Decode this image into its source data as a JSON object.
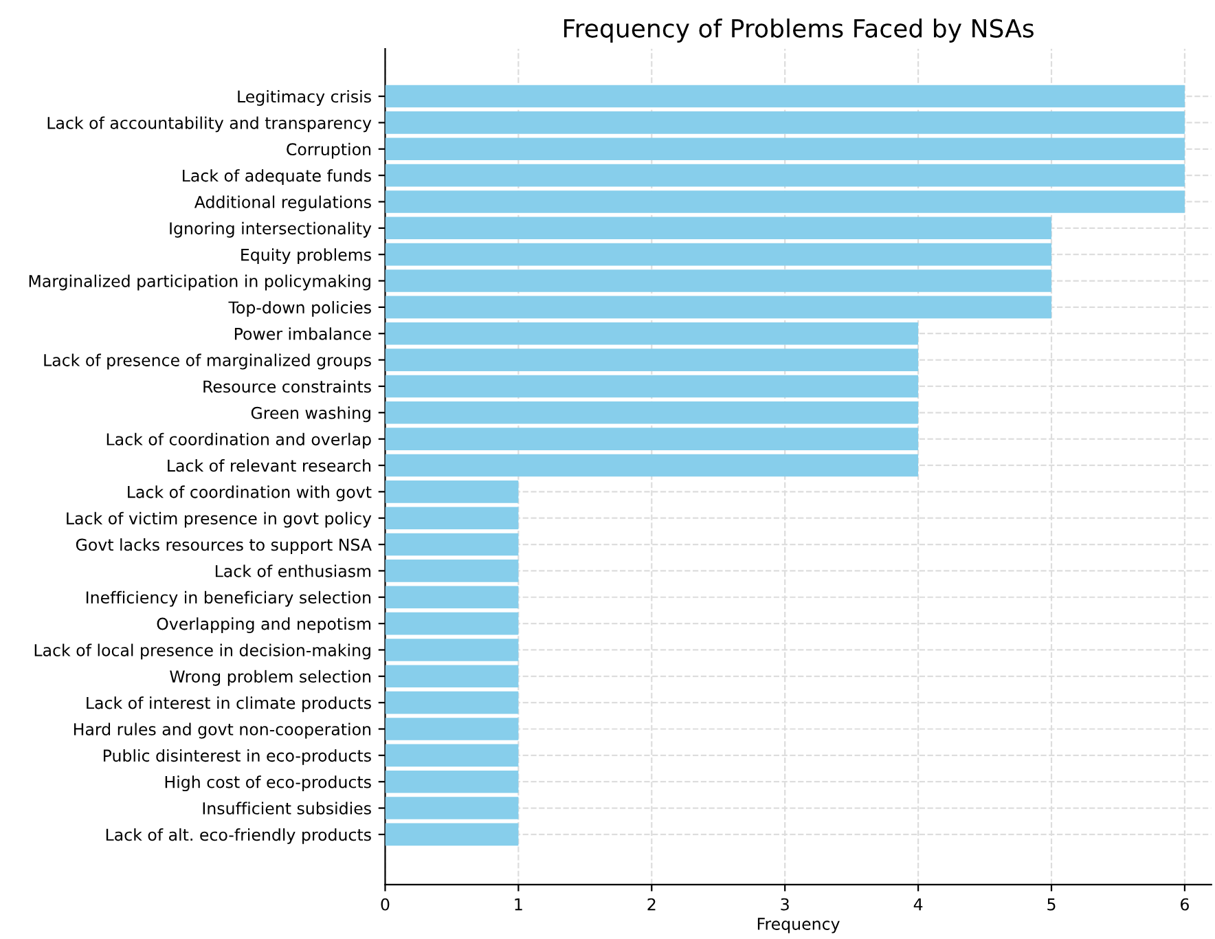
{
  "chart_data": {
    "type": "bar",
    "orientation": "horizontal",
    "title": "Frequency of Problems Faced by NSAs",
    "xlabel": "Frequency",
    "categories": [
      "Legitimacy crisis",
      "Lack of accountability and transparency",
      "Corruption",
      "Lack of adequate funds",
      "Additional regulations",
      "Ignoring intersectionality",
      "Equity problems",
      "Marginalized participation in policymaking",
      "Top-down policies",
      "Power imbalance",
      "Lack of presence of marginalized groups",
      "Resource constraints",
      "Green washing",
      "Lack of coordination and overlap",
      "Lack of relevant research",
      "Lack of coordination with govt",
      "Lack of victim presence in govt policy",
      "Govt lacks resources to support NSA",
      "Lack of enthusiasm",
      "Inefficiency in beneficiary selection",
      "Overlapping and nepotism",
      "Lack of local presence in decision-making",
      "Wrong problem selection",
      "Lack of interest in climate products",
      "Hard rules and govt non-cooperation",
      "Public disinterest in eco-products",
      "High cost of eco-products",
      "Insufficient subsidies",
      "Lack of alt. eco-friendly products"
    ],
    "values": [
      6,
      6,
      6,
      6,
      6,
      5,
      5,
      5,
      5,
      4,
      4,
      4,
      4,
      4,
      4,
      1,
      1,
      1,
      1,
      1,
      1,
      1,
      1,
      1,
      1,
      1,
      1,
      1,
      1
    ],
    "color": "#87ceeb",
    "xlim": [
      0,
      6.2
    ],
    "xticks": [
      0,
      1,
      2,
      3,
      4,
      5,
      6
    ],
    "grid": true
  }
}
